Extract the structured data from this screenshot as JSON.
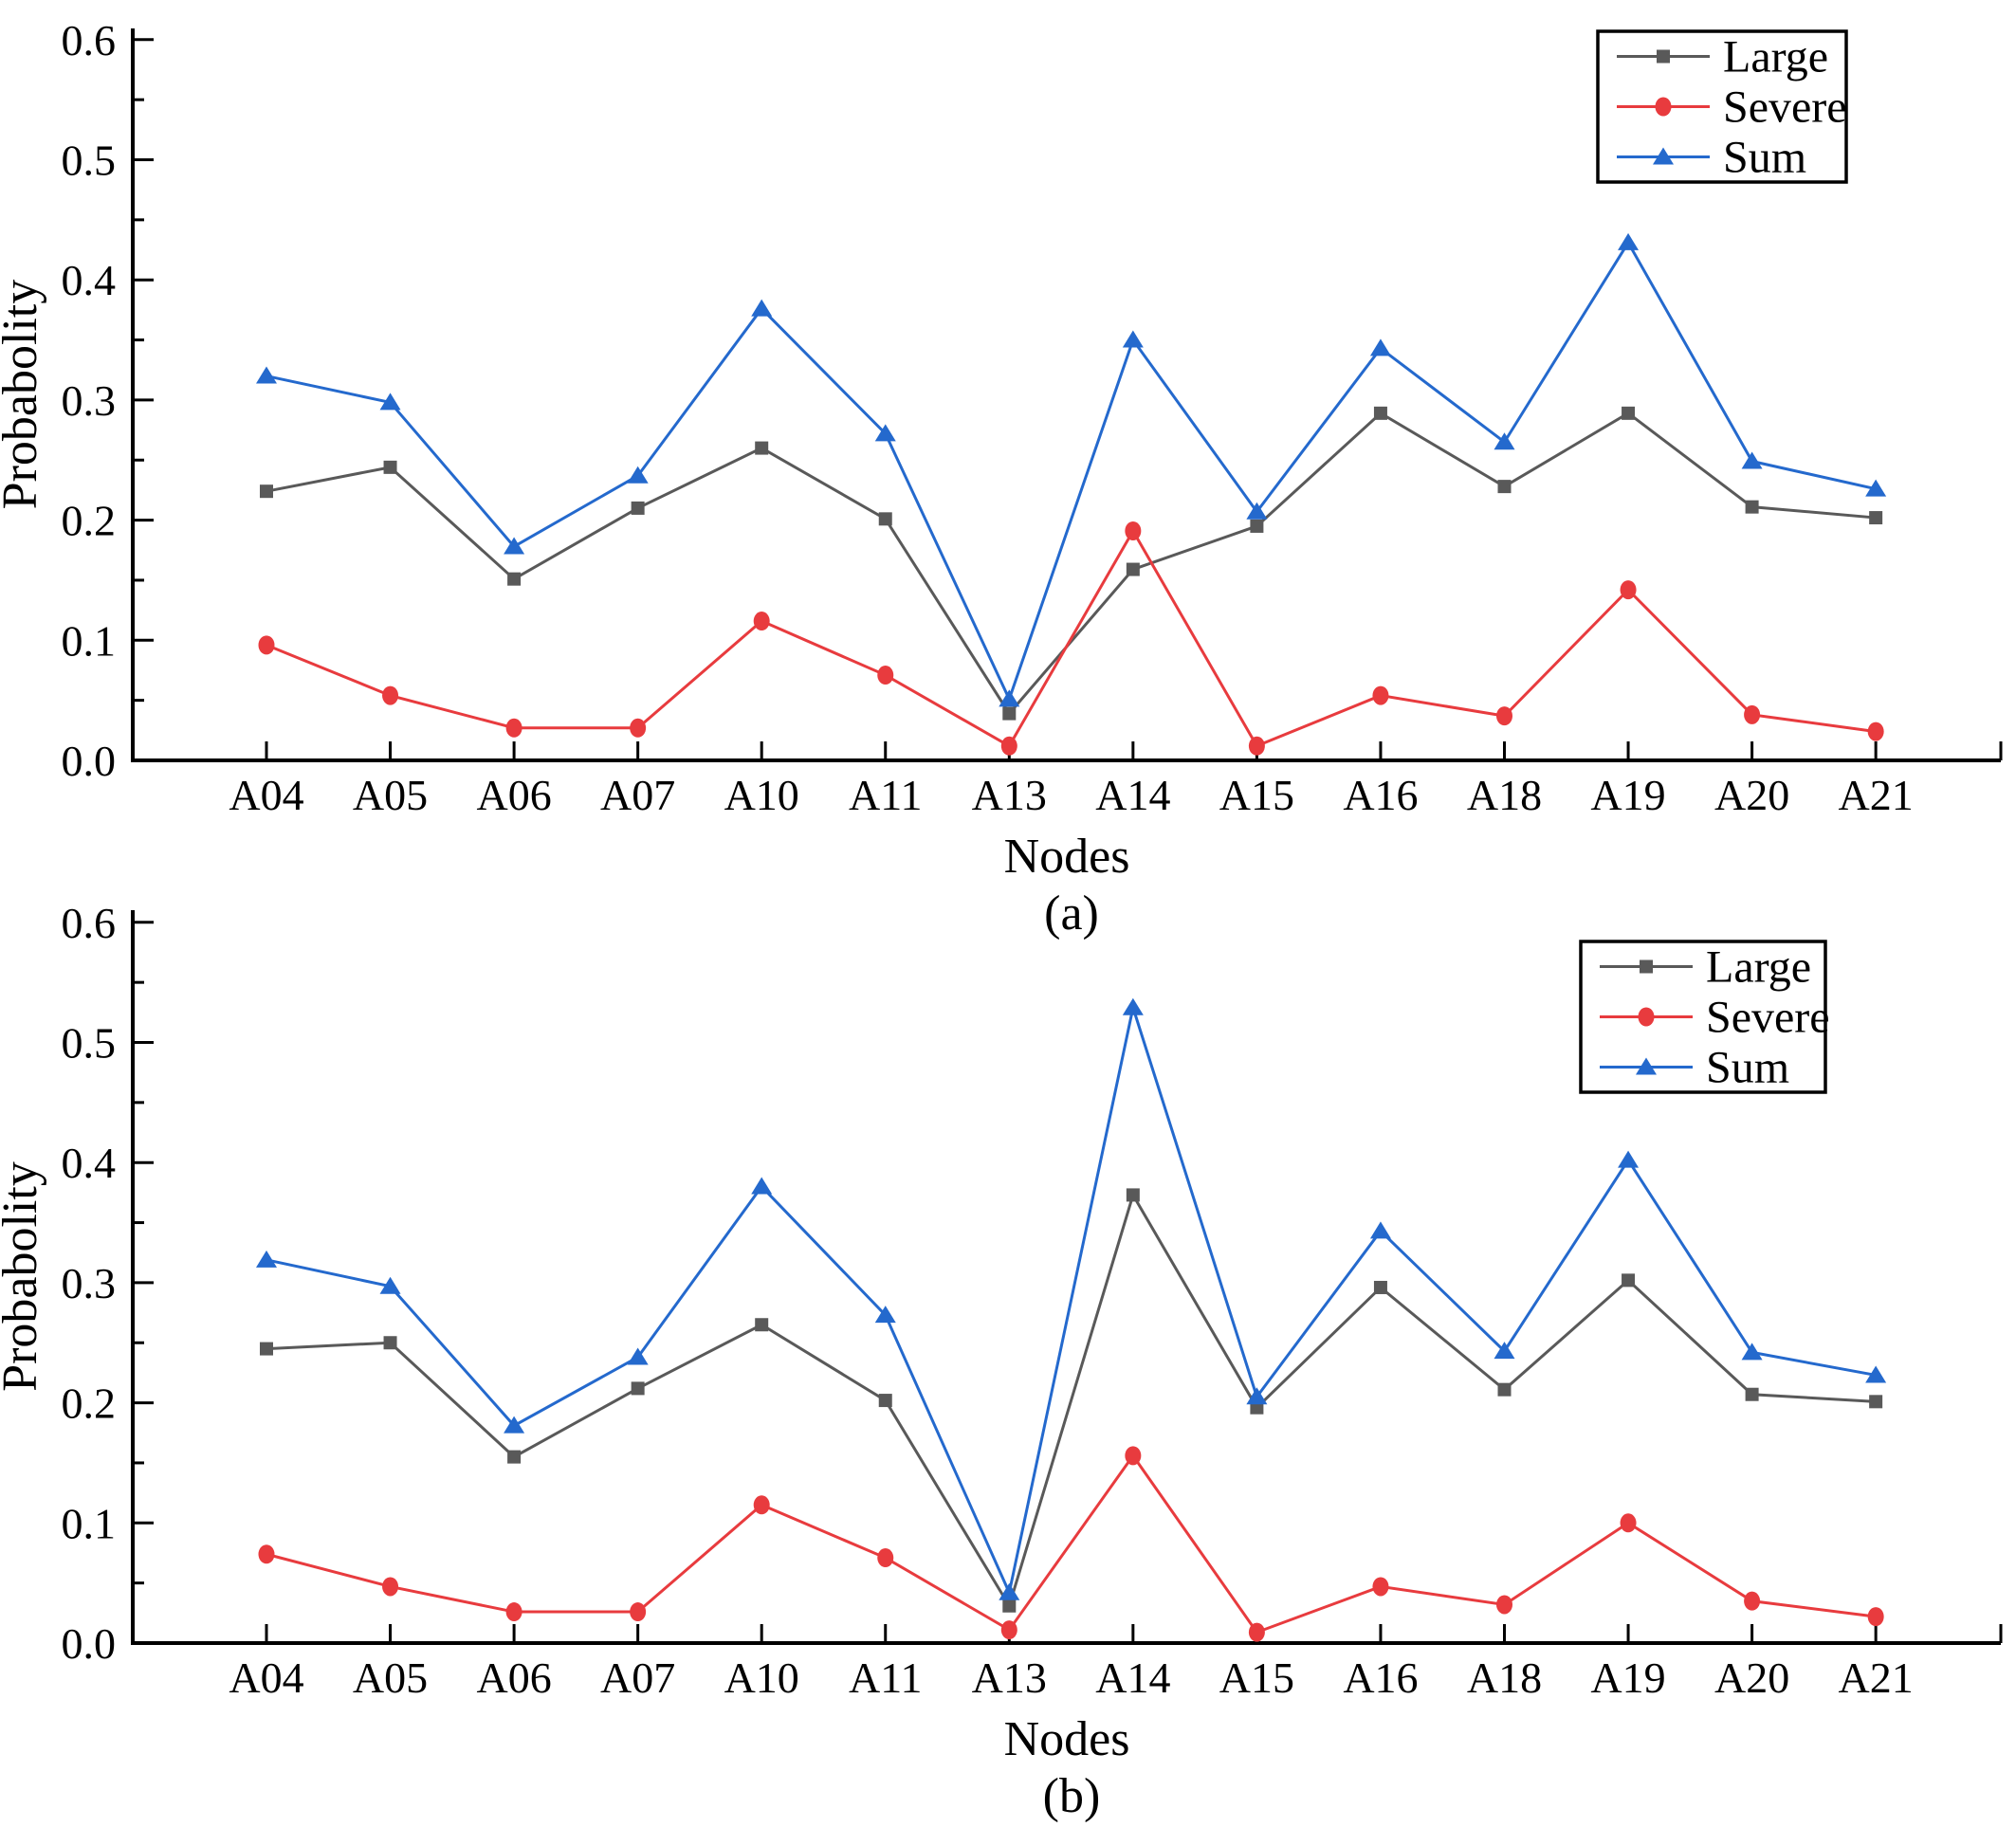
{
  "figure": {
    "panels": [
      {
        "caption": "(a)"
      },
      {
        "caption": "(b)"
      }
    ]
  },
  "chart_data": [
    {
      "type": "line",
      "panel": "a",
      "caption": "(a)",
      "xlabel": "Nodes",
      "ylabel": "Probabolity",
      "ylim": [
        0.0,
        0.6
      ],
      "yticks": [
        "0.0",
        "0.1",
        "0.2",
        "0.3",
        "0.4",
        "0.5",
        "0.6"
      ],
      "grid": false,
      "legend_position": "top-right",
      "categories": [
        "A04",
        "A05",
        "A06",
        "A07",
        "A10",
        "A11",
        "A13",
        "A14",
        "A15",
        "A16",
        "A18",
        "A19",
        "A20",
        "A21"
      ],
      "series": [
        {
          "name": "Large",
          "color": "#595959",
          "marker": "square",
          "values": [
            0.224,
            0.244,
            0.151,
            0.21,
            0.26,
            0.201,
            0.039,
            0.159,
            0.195,
            0.289,
            0.228,
            0.289,
            0.211,
            0.202
          ]
        },
        {
          "name": "Severe",
          "color": "#e83b3e",
          "marker": "circle",
          "values": [
            0.096,
            0.054,
            0.027,
            0.027,
            0.116,
            0.071,
            0.012,
            0.191,
            0.012,
            0.054,
            0.037,
            0.142,
            0.038,
            0.024
          ]
        },
        {
          "name": "Sum",
          "color": "#2469cd",
          "marker": "triangle",
          "values": [
            0.32,
            0.298,
            0.178,
            0.237,
            0.376,
            0.272,
            0.051,
            0.35,
            0.207,
            0.343,
            0.265,
            0.431,
            0.249,
            0.226
          ]
        }
      ]
    },
    {
      "type": "line",
      "panel": "b",
      "caption": "(b)",
      "xlabel": "Nodes",
      "ylabel": "Probabolity",
      "ylim": [
        0.0,
        0.6
      ],
      "yticks": [
        "0.0",
        "0.1",
        "0.2",
        "0.3",
        "0.4",
        "0.5",
        "0.6"
      ],
      "grid": false,
      "legend_position": "top-right",
      "categories": [
        "A04",
        "A05",
        "A06",
        "A07",
        "A10",
        "A11",
        "A13",
        "A14",
        "A15",
        "A16",
        "A18",
        "A19",
        "A20",
        "A21"
      ],
      "series": [
        {
          "name": "Large",
          "color": "#595959",
          "marker": "square",
          "values": [
            0.245,
            0.25,
            0.155,
            0.212,
            0.265,
            0.202,
            0.031,
            0.373,
            0.196,
            0.296,
            0.211,
            0.302,
            0.207,
            0.201
          ]
        },
        {
          "name": "Severe",
          "color": "#e83b3e",
          "marker": "circle",
          "values": [
            0.074,
            0.047,
            0.026,
            0.026,
            0.115,
            0.071,
            0.011,
            0.156,
            0.009,
            0.047,
            0.032,
            0.1,
            0.035,
            0.022
          ]
        },
        {
          "name": "Sum",
          "color": "#2469cd",
          "marker": "triangle",
          "values": [
            0.319,
            0.297,
            0.181,
            0.238,
            0.38,
            0.273,
            0.042,
            0.529,
            0.205,
            0.343,
            0.243,
            0.402,
            0.242,
            0.223
          ]
        }
      ]
    }
  ]
}
